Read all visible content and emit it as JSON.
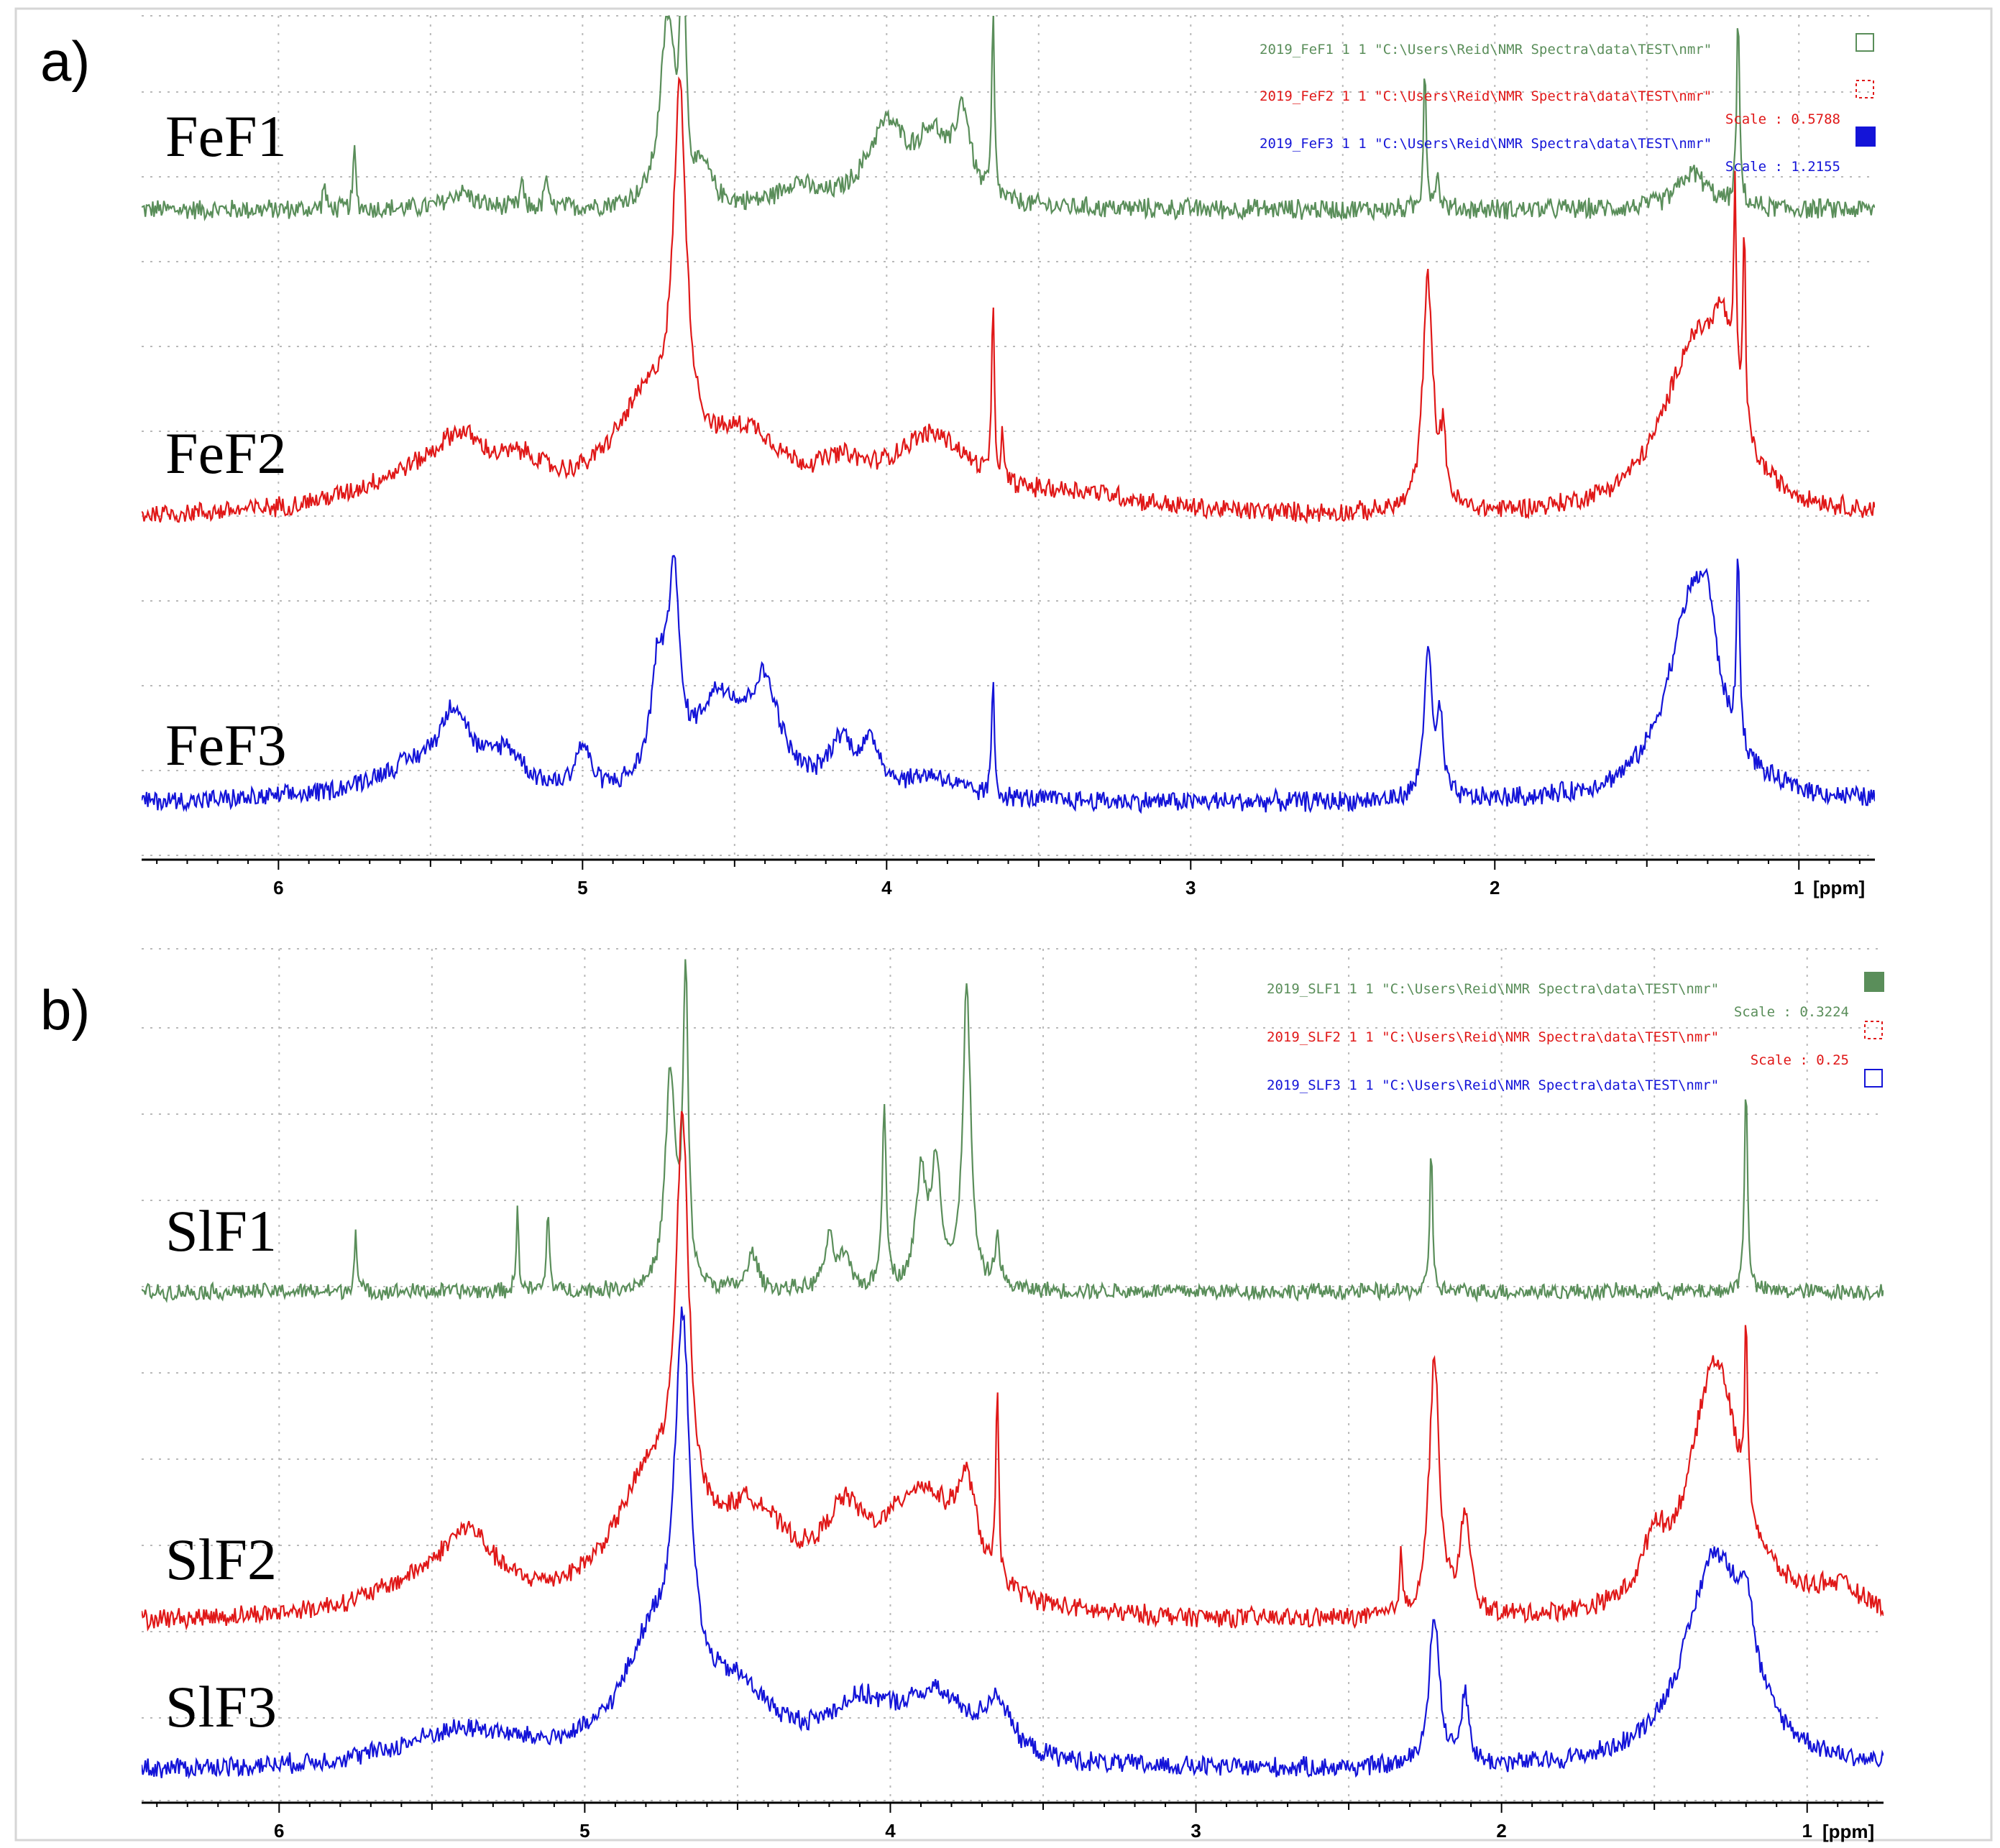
{
  "colors": {
    "green": "#5a8e5a",
    "red": "#e01818",
    "blue": "#1414d8"
  },
  "chart_data": [
    {
      "type": "line",
      "panel_label": "a)",
      "xlabel": "[ppm]",
      "xlim": [
        6.45,
        0.75
      ],
      "x_reversed": true,
      "x_ticks": [
        6,
        5,
        4,
        3,
        2,
        1
      ],
      "x_tick_labels": [
        "6",
        "5",
        "4",
        "3",
        "2",
        "1"
      ],
      "grid": "dotted",
      "legend_position": "top-right",
      "series": [
        {
          "name": "FeF1",
          "color_key": "green",
          "legend_text": "2019_FeF1  1  1  \"C:\\Users\\Reid\\NMR Spectra\\data\\TEST\\nmr\"",
          "legend_box": "outline",
          "peaks": [
            [
              5.75,
              1.0,
              0.005
            ],
            [
              5.85,
              0.45,
              0.005
            ],
            [
              5.4,
              0.28,
              0.05
            ],
            [
              5.2,
              0.5,
              0.005
            ],
            [
              5.12,
              0.6,
              0.005
            ],
            [
              4.72,
              3.0,
              0.03
            ],
            [
              4.67,
              4.0,
              0.01
            ],
            [
              4.6,
              0.5,
              0.03
            ],
            [
              4.3,
              0.35,
              0.06
            ],
            [
              4.0,
              1.3,
              0.08
            ],
            [
              3.85,
              1.0,
              0.06
            ],
            [
              3.75,
              1.4,
              0.03
            ],
            [
              3.65,
              3.0,
              0.005
            ],
            [
              2.23,
              2.5,
              0.005
            ],
            [
              2.19,
              0.5,
              0.01
            ],
            [
              1.35,
              0.6,
              0.06
            ],
            [
              1.2,
              3.0,
              0.006
            ]
          ]
        },
        {
          "name": "FeF2",
          "color_key": "red",
          "legend_text": "2019_FeF2  1  1  \"C:\\Users\\Reid\\NMR Spectra\\data\\TEST\\nmr\"",
          "legend_scale": "Scale : 0.5788",
          "legend_box": "dashed",
          "peaks": [
            [
              5.55,
              0.5,
              0.25
            ],
            [
              5.4,
              0.7,
              0.1
            ],
            [
              5.2,
              0.45,
              0.1
            ],
            [
              4.78,
              1.5,
              0.15
            ],
            [
              4.68,
              5.0,
              0.025
            ],
            [
              4.45,
              0.9,
              0.14
            ],
            [
              4.15,
              0.4,
              0.1
            ],
            [
              3.85,
              1.05,
              0.17
            ],
            [
              3.65,
              2.5,
              0.005
            ],
            [
              3.62,
              0.6,
              0.005
            ],
            [
              3.35,
              0.25,
              0.25
            ],
            [
              2.22,
              3.4,
              0.02
            ],
            [
              2.17,
              0.9,
              0.012
            ],
            [
              1.34,
              2.5,
              0.13
            ],
            [
              1.25,
              1.4,
              0.04
            ],
            [
              1.21,
              3.0,
              0.005
            ],
            [
              1.18,
              3.0,
              0.005
            ]
          ]
        },
        {
          "name": "FeF3",
          "color_key": "blue",
          "legend_text": "2019_FeF3  1  1  \"C:\\Users\\Reid\\NMR Spectra\\data\\TEST\\nmr\"",
          "legend_scale": "Scale : 1.2155",
          "legend_box": "filled",
          "peaks": [
            [
              5.55,
              0.5,
              0.2
            ],
            [
              5.42,
              1.1,
              0.06
            ],
            [
              5.25,
              0.6,
              0.07
            ],
            [
              5.0,
              0.7,
              0.03
            ],
            [
              4.75,
              1.8,
              0.03
            ],
            [
              4.7,
              3.0,
              0.02
            ],
            [
              4.55,
              1.5,
              0.1
            ],
            [
              4.4,
              1.5,
              0.06
            ],
            [
              4.15,
              0.8,
              0.05
            ],
            [
              4.05,
              0.7,
              0.04
            ],
            [
              3.85,
              0.35,
              0.1
            ],
            [
              3.65,
              1.9,
              0.005
            ],
            [
              2.22,
              2.4,
              0.015
            ],
            [
              2.18,
              1.2,
              0.012
            ],
            [
              1.35,
              3.2,
              0.1
            ],
            [
              1.3,
              1.0,
              0.03
            ],
            [
              1.2,
              3.0,
              0.006
            ]
          ]
        }
      ]
    },
    {
      "type": "line",
      "panel_label": "b)",
      "xlabel": "[ppm]",
      "xlim": [
        6.45,
        0.75
      ],
      "x_reversed": true,
      "x_ticks": [
        6,
        5,
        4,
        3,
        2,
        1
      ],
      "x_tick_labels": [
        "6",
        "5",
        "4",
        "3",
        "2",
        "1"
      ],
      "grid": "dotted",
      "legend_position": "top-right",
      "series": [
        {
          "name": "SlF1",
          "color_key": "green",
          "legend_text": "2019_SLF1  1  1  \"C:\\Users\\Reid\\NMR Spectra\\data\\TEST\\nmr\"",
          "legend_scale": "Scale : 0.3224",
          "legend_box": "filled",
          "peaks": [
            [
              5.75,
              1.0,
              0.005
            ],
            [
              5.22,
              1.3,
              0.005
            ],
            [
              5.12,
              1.4,
              0.005
            ],
            [
              4.72,
              3.5,
              0.02
            ],
            [
              4.67,
              5.0,
              0.01
            ],
            [
              4.45,
              0.6,
              0.02
            ],
            [
              4.2,
              0.8,
              0.02
            ],
            [
              4.15,
              0.5,
              0.02
            ],
            [
              4.02,
              3.0,
              0.008
            ],
            [
              3.9,
              1.8,
              0.02
            ],
            [
              3.85,
              2.0,
              0.02
            ],
            [
              3.75,
              5.0,
              0.015
            ],
            [
              3.65,
              0.8,
              0.01
            ],
            [
              2.23,
              2.5,
              0.005
            ],
            [
              1.2,
              3.5,
              0.006
            ]
          ]
        },
        {
          "name": "SlF2",
          "color_key": "red",
          "legend_text": "2019_SLF2  1  1  \"C:\\Users\\Reid\\NMR Spectra\\data\\TEST\\nmr\"",
          "legend_scale": "Scale : 0.25",
          "legend_box": "dashed",
          "peaks": [
            [
              5.5,
              0.5,
              0.25
            ],
            [
              5.38,
              0.9,
              0.1
            ],
            [
              4.78,
              2.0,
              0.15
            ],
            [
              4.68,
              6.0,
              0.025
            ],
            [
              4.45,
              1.3,
              0.14
            ],
            [
              4.15,
              1.1,
              0.08
            ],
            [
              3.9,
              1.8,
              0.15
            ],
            [
              3.75,
              1.3,
              0.04
            ],
            [
              3.65,
              3.0,
              0.005
            ],
            [
              2.33,
              1.0,
              0.005
            ],
            [
              2.22,
              4.0,
              0.02
            ],
            [
              2.12,
              1.5,
              0.02
            ],
            [
              1.5,
              0.8,
              0.04
            ],
            [
              1.3,
              4.0,
              0.1
            ],
            [
              1.2,
              3.0,
              0.005
            ],
            [
              0.9,
              0.4,
              0.1
            ]
          ]
        },
        {
          "name": "SlF3",
          "color_key": "blue",
          "legend_text": "2019_SLF3  1  1  \"C:\\Users\\Reid\\NMR Spectra\\data\\TEST\\nmr\"",
          "legend_box": "outline",
          "peaks": [
            [
              5.4,
              0.6,
              0.25
            ],
            [
              4.78,
              1.8,
              0.12
            ],
            [
              4.68,
              6.0,
              0.03
            ],
            [
              4.5,
              1.0,
              0.14
            ],
            [
              4.1,
              0.8,
              0.14
            ],
            [
              3.85,
              1.0,
              0.14
            ],
            [
              3.65,
              0.8,
              0.05
            ],
            [
              2.22,
              2.5,
              0.02
            ],
            [
              2.12,
              1.2,
              0.015
            ],
            [
              1.3,
              3.5,
              0.12
            ],
            [
              1.2,
              1.2,
              0.03
            ]
          ]
        }
      ]
    }
  ]
}
